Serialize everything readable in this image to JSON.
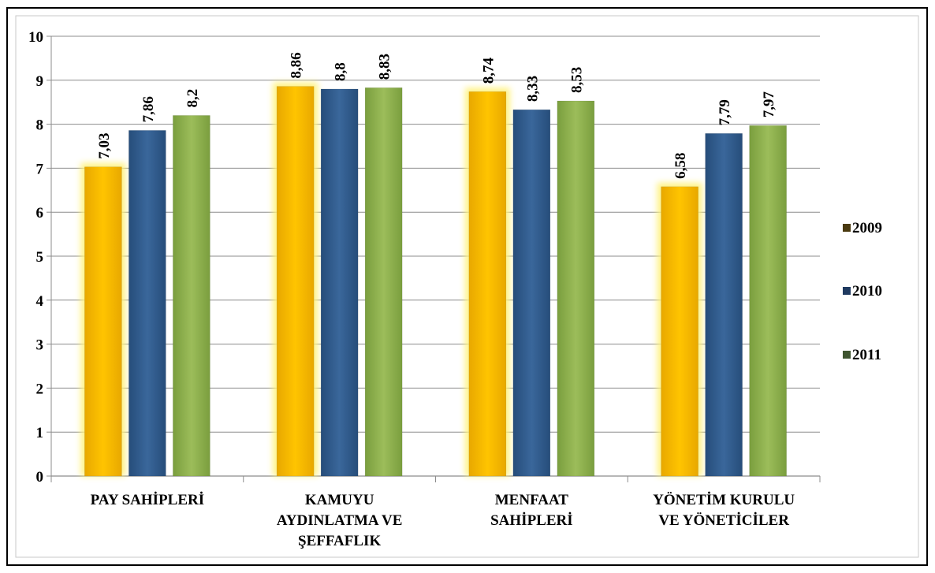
{
  "chart_data": {
    "type": "bar",
    "title": "",
    "xlabel": "",
    "ylabel": "",
    "categories": [
      [
        "PAY SAHİPLERİ"
      ],
      [
        "KAMUYU",
        "AYDINLATMA VE",
        "ŞEFFAFLIK"
      ],
      [
        "MENFAAT",
        "SAHİPLERİ"
      ],
      [
        "YÖNETİM KURULU",
        "VE YÖNETİCİLER"
      ]
    ],
    "series": [
      {
        "name": "2009",
        "color": "#F5B800",
        "values": [
          7.03,
          8.86,
          8.74,
          6.58
        ],
        "labels": [
          "7,03",
          "8,86",
          "8,74",
          "6,58"
        ],
        "highlight": true
      },
      {
        "name": "2010",
        "color": "#2E5A8C",
        "values": [
          7.86,
          8.8,
          8.33,
          7.79
        ],
        "labels": [
          "7,86",
          "8,8",
          "8,33",
          "7,79"
        ]
      },
      {
        "name": "2011",
        "color": "#8DB04C",
        "values": [
          8.2,
          8.83,
          8.53,
          7.97
        ],
        "labels": [
          "8,2",
          "8,83",
          "8,53",
          "7,97"
        ]
      }
    ],
    "ylim": [
      0,
      10
    ],
    "yticks": [
      "0",
      "1",
      "2",
      "3",
      "4",
      "5",
      "6",
      "7",
      "8",
      "9",
      "10"
    ],
    "grid": true,
    "legend": {
      "position": "right",
      "swatch_colors": [
        "#4A3A10",
        "#1F3A60",
        "#3F5530"
      ]
    },
    "border_color": "#000000"
  }
}
